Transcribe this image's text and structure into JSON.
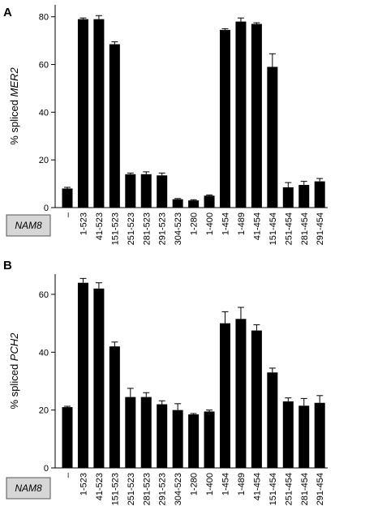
{
  "chart_data": [
    {
      "type": "bar",
      "panel_label": "A",
      "ylabel_prefix": "% spliced ",
      "ylabel_gene": "MER2",
      "ylim": [
        0,
        85
      ],
      "yticks": [
        0,
        20,
        40,
        60,
        80
      ],
      "row_label": "NAM8",
      "categories": [
        "–",
        "1-523",
        "41-523",
        "151-523",
        "251-523",
        "281-523",
        "291-523",
        "304-523",
        "1-280",
        "1-400",
        "1-454",
        "1-489",
        "41-454",
        "151-454",
        "251-454",
        "281-454",
        "291-454"
      ],
      "values": [
        8,
        79,
        79,
        68.5,
        14,
        14,
        13.5,
        3.5,
        3,
        5,
        74.5,
        78,
        77,
        59,
        8.5,
        9.5,
        11
      ],
      "errors": [
        0.5,
        0.5,
        1.5,
        1,
        0.5,
        1,
        1,
        0.3,
        0.3,
        0.3,
        0.5,
        1.5,
        0.5,
        5.5,
        2,
        1.5,
        1.2
      ]
    },
    {
      "type": "bar",
      "panel_label": "B",
      "ylabel_prefix": "% spliced ",
      "ylabel_gene": "PCH2",
      "ylim": [
        0,
        67
      ],
      "yticks": [
        0,
        20,
        40,
        60
      ],
      "row_label": "NAM8",
      "categories": [
        "–",
        "1-523",
        "41-523",
        "151-523",
        "251-523",
        "281-523",
        "291-523",
        "304-523",
        "1-280",
        "1-400",
        "1-454",
        "1-489",
        "41-454",
        "151-454",
        "251-454",
        "281-454",
        "291-454"
      ],
      "values": [
        21,
        64,
        62,
        42,
        24.5,
        24.5,
        22,
        20,
        18.5,
        19.5,
        50,
        51.5,
        47.5,
        33,
        23,
        21.5,
        22.5
      ],
      "errors": [
        0.3,
        1.5,
        2,
        1.5,
        3,
        1.5,
        1.2,
        2.2,
        0.3,
        0.5,
        4,
        4,
        2,
        1.5,
        1.2,
        2.5,
        2.5
      ]
    }
  ]
}
